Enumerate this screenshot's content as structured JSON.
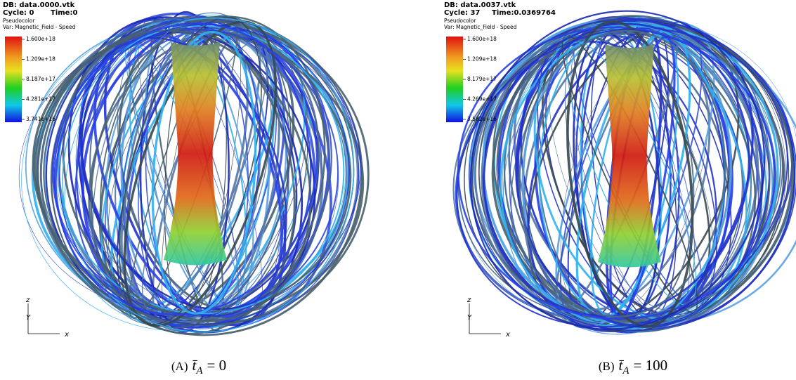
{
  "panels": [
    {
      "db": "DB: data.0000.vtk",
      "cycle": "Cycle: 0",
      "time": "Time:0",
      "plot": "Pseudocolor",
      "var": "Var: Magnetic_Field - Speed",
      "legend": [
        "1.600e+18",
        "1.209e+18",
        "8.187e+17",
        "4.281e+17",
        "3.741e+16"
      ],
      "axes": [
        "z",
        "Y",
        "x"
      ],
      "caption": {
        "label": "(A)",
        "symbol": "t̄",
        "subscript": "A",
        "rhs": "= 0"
      }
    },
    {
      "db": "DB: data.0037.vtk",
      "cycle": "Cycle: 37",
      "time": "Time:0.0369764",
      "plot": "Pseudocolor",
      "var": "Var: Magnetic_Field - Speed",
      "legend": [
        "1.600e+18",
        "1.209e+18",
        "8.179e+17",
        "4.269e+17",
        "3.582e+16"
      ],
      "axes": [
        "z",
        "Y",
        "x"
      ],
      "caption": {
        "label": "(B)",
        "symbol": "t̄",
        "subscript": "A",
        "rhs": "= 100"
      }
    }
  ]
}
